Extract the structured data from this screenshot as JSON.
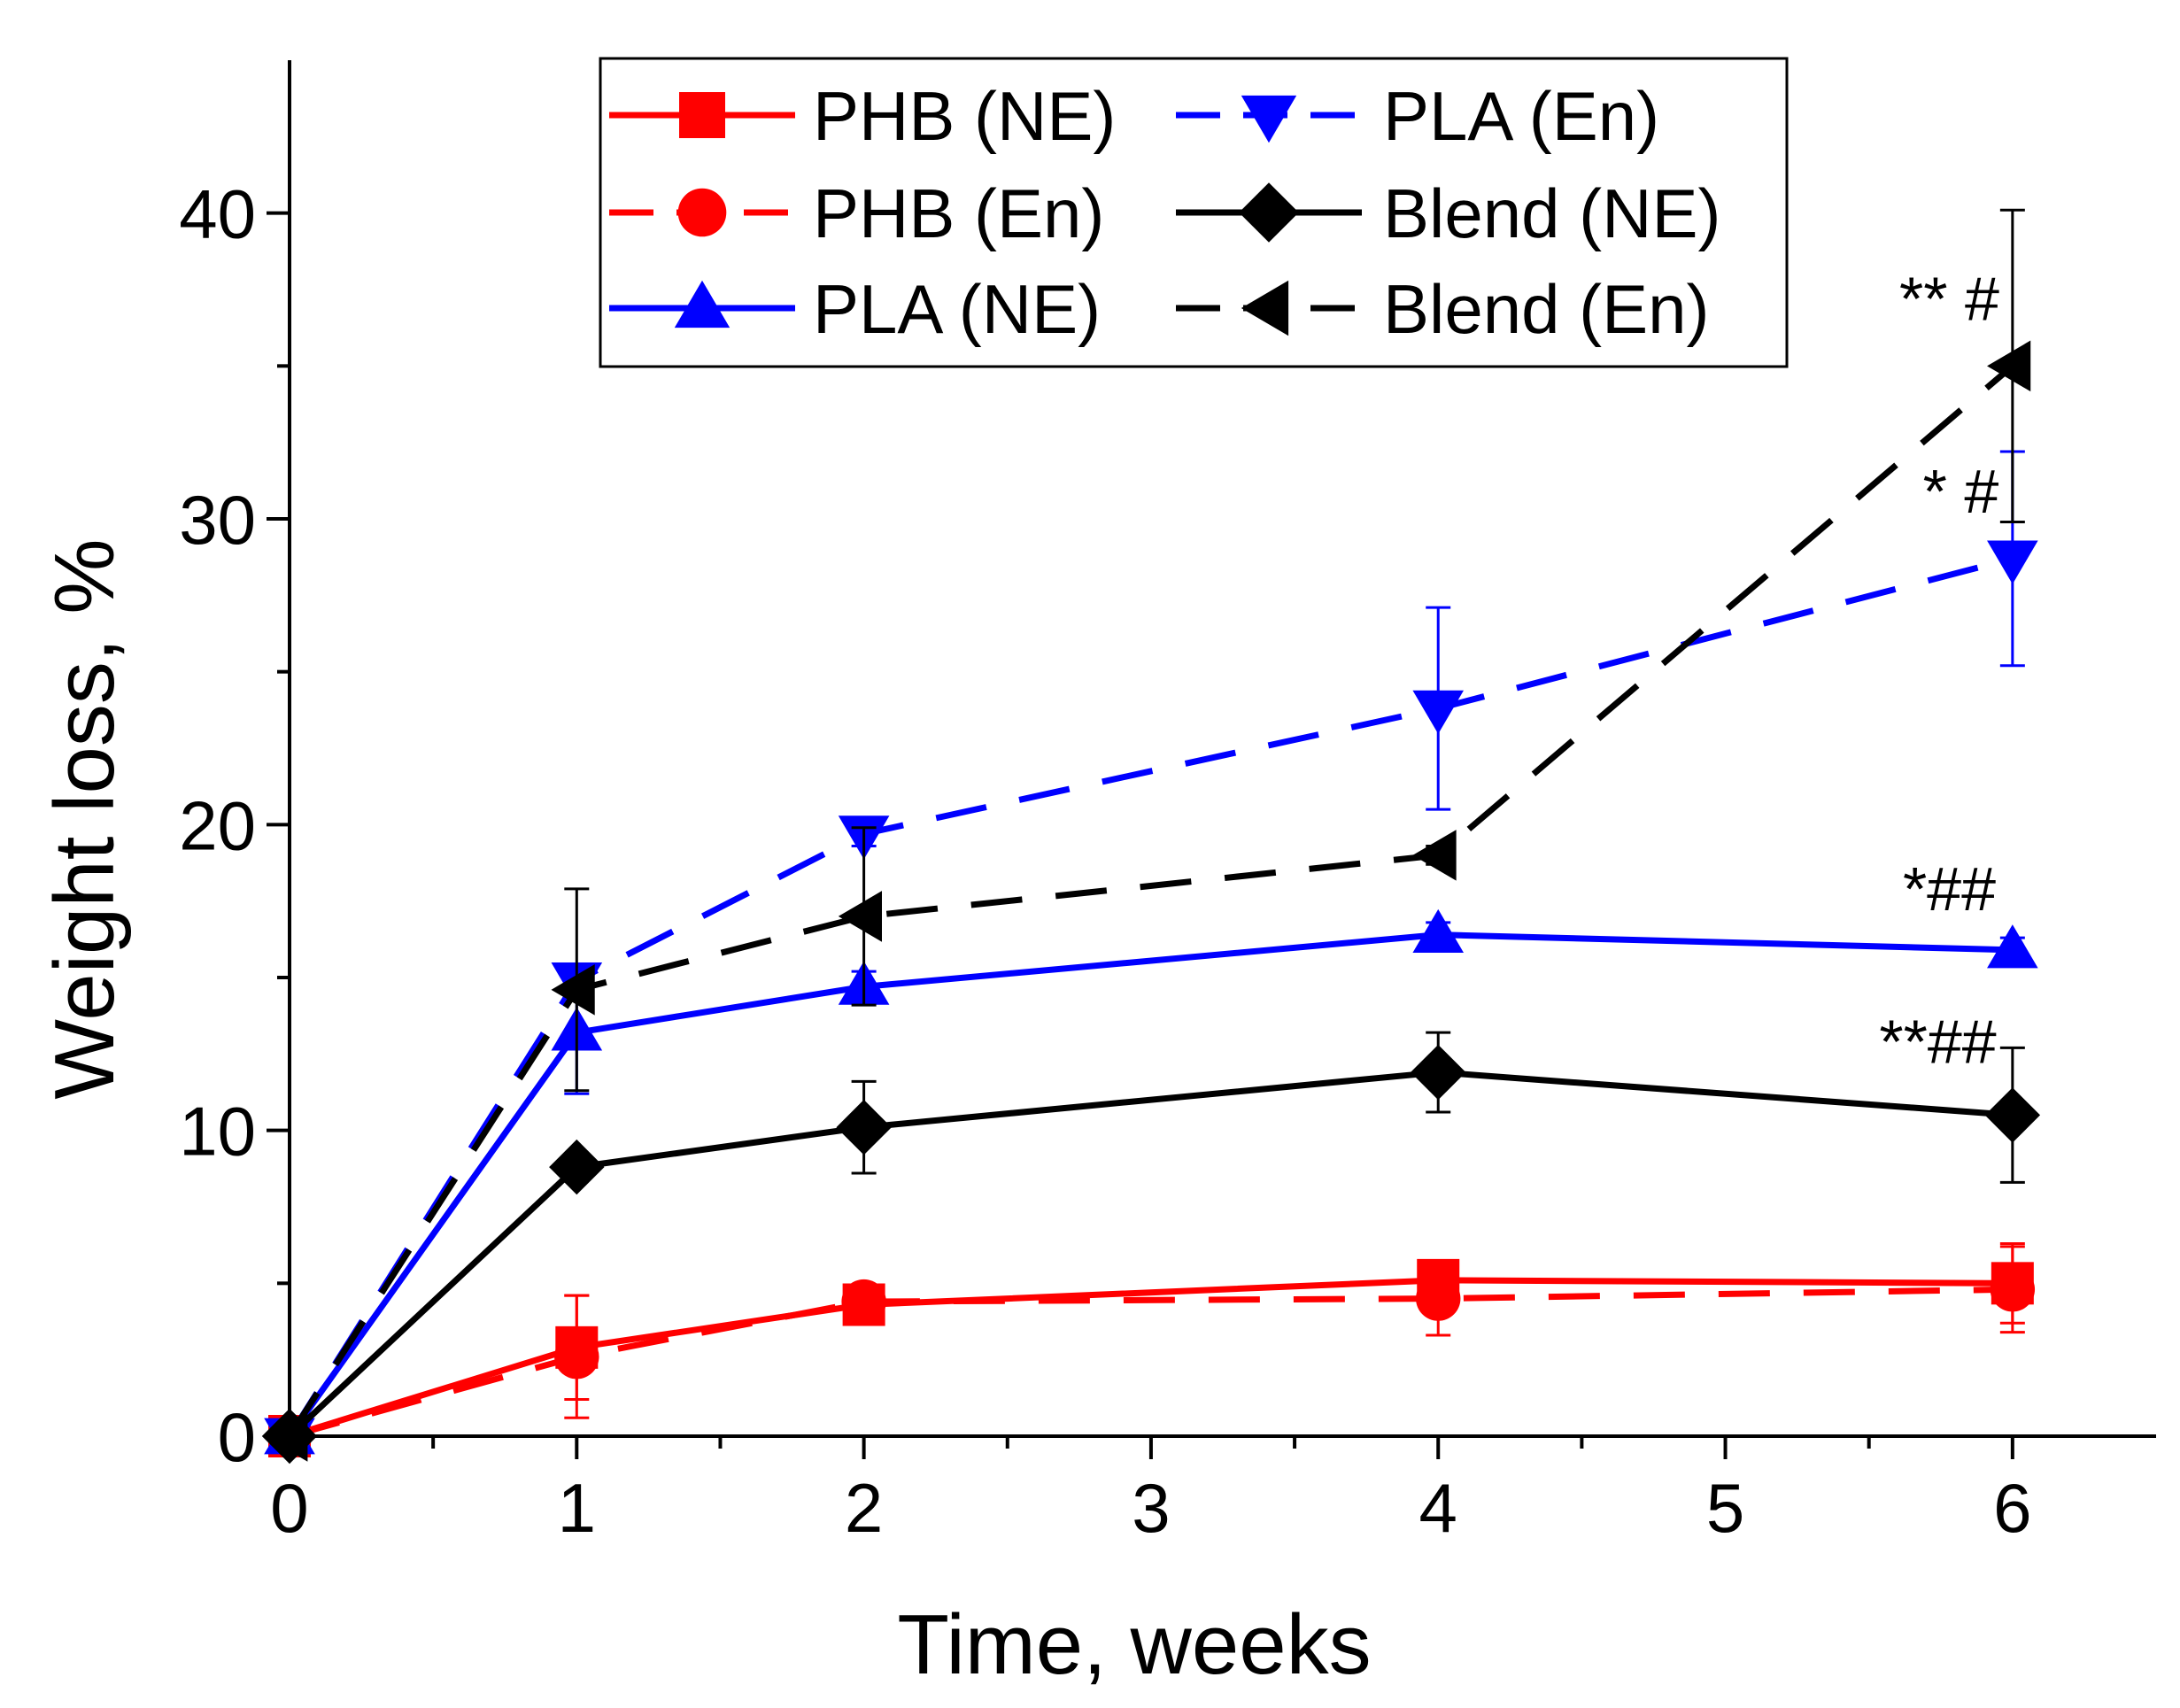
{
  "chart_data": {
    "type": "line",
    "title": "",
    "xlabel": "Time, weeks",
    "ylabel": "Weight loss, %",
    "xlim": [
      0,
      6.5
    ],
    "ylim": [
      0,
      45
    ],
    "x_ticks": [
      0,
      1,
      2,
      3,
      4,
      5,
      6
    ],
    "y_ticks": [
      0,
      10,
      20,
      30,
      40
    ],
    "grid": false,
    "legend_position": "top",
    "series": [
      {
        "name": "PHB (NE)",
        "color": "#ff0000",
        "dash": "solid",
        "marker": "square",
        "x": [
          0,
          1,
          2,
          4,
          6
        ],
        "y": [
          0,
          2.9,
          4.3,
          5.1,
          5.0
        ],
        "err": [
          0,
          1.7,
          0.5,
          0.5,
          1.3
        ]
      },
      {
        "name": "PHB (En)",
        "color": "#ff0000",
        "dash": "dashed",
        "marker": "circle",
        "x": [
          0,
          1,
          2,
          4,
          6
        ],
        "y": [
          0,
          2.6,
          4.4,
          4.5,
          4.8
        ],
        "err": [
          0,
          2.0,
          0.5,
          1.2,
          1.4
        ]
      },
      {
        "name": "PLA (NE)",
        "color": "#0000ff",
        "dash": "solid",
        "marker": "triangle-up",
        "x": [
          0,
          1,
          2,
          4,
          6
        ],
        "y": [
          0,
          13.2,
          14.7,
          16.4,
          15.9
        ],
        "err": [
          0,
          2.0,
          0.5,
          0.4,
          0.4
        ]
      },
      {
        "name": "PLA (En)",
        "color": "#0000ff",
        "dash": "dashed",
        "marker": "triangle-down",
        "x": [
          0,
          1,
          2,
          4,
          6
        ],
        "y": [
          0,
          14.9,
          19.7,
          23.8,
          28.7
        ],
        "err": [
          0,
          0.5,
          0.4,
          3.3,
          3.5
        ]
      },
      {
        "name": "Blend (NE)",
        "color": "#000000",
        "dash": "solid",
        "marker": "diamond",
        "x": [
          0,
          1,
          2,
          4,
          6
        ],
        "y": [
          0,
          8.8,
          10.1,
          11.9,
          10.5
        ],
        "err": [
          0,
          0.3,
          1.5,
          1.3,
          2.2
        ]
      },
      {
        "name": "Blend (En)",
        "color": "#000000",
        "dash": "dashed",
        "marker": "triangle-left",
        "x": [
          0,
          1,
          2,
          4,
          6
        ],
        "y": [
          0,
          14.6,
          17.0,
          19.0,
          35.0
        ],
        "err": [
          0,
          3.3,
          2.9,
          0.3,
          5.1
        ]
      }
    ],
    "annotations": [
      {
        "text": "** #",
        "x": 5.78,
        "y": 36.5
      },
      {
        "text": "* #",
        "x": 5.82,
        "y": 30.2
      },
      {
        "text": "*##",
        "x": 5.78,
        "y": 17.2
      },
      {
        "text": "**##",
        "x": 5.74,
        "y": 12.2
      }
    ]
  }
}
